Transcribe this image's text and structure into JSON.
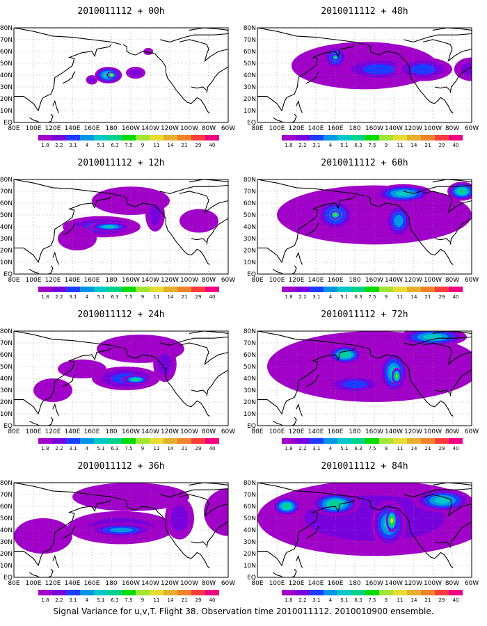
{
  "caption": "Signal Variance for u,v,T. Flight 38. Observation time 2010011112. 2010010900 ensemble.",
  "lat_labels": [
    "80N",
    "70N",
    "60N",
    "50N",
    "40N",
    "30N",
    "20N",
    "10N",
    "EQ"
  ],
  "lon_labels": [
    "80E",
    "100E",
    "120E",
    "140E",
    "160E",
    "180",
    "160W",
    "140W",
    "120W",
    "100W",
    "80W",
    "60W"
  ],
  "colorbar": {
    "labels": [
      "1.8",
      "2.2",
      "3.1",
      "4",
      "5.1",
      "6.3",
      "7.5",
      "9",
      "11",
      "14",
      "21",
      "29",
      "40"
    ],
    "colors": [
      "#a000c8",
      "#7800dc",
      "#1e3cff",
      "#0096e6",
      "#00c8c8",
      "#00d28c",
      "#00dc00",
      "#a0e632",
      "#e6dc32",
      "#e6af2d",
      "#f08228",
      "#fa3c3c",
      "#f00082"
    ]
  },
  "chart_data": [
    {
      "type": "heatmap",
      "title": "2010011112 + 00h",
      "blobs": [
        {
          "lon": 177,
          "lat": 40,
          "rx": 14,
          "ry": 7,
          "level": 5
        },
        {
          "lon": 160,
          "lat": 36,
          "rx": 6,
          "ry": 4,
          "level": 1
        },
        {
          "lon": 205,
          "lat": 42,
          "rx": 10,
          "ry": 5,
          "level": 1
        },
        {
          "lon": 180,
          "lat": 40,
          "rx": 5,
          "ry": 3,
          "level": 8
        },
        {
          "lon": 218,
          "lat": 60,
          "rx": 5,
          "ry": 3,
          "level": 0
        }
      ]
    },
    {
      "type": "heatmap",
      "title": "2010011112 + 12h",
      "blobs": [
        {
          "lon": 170,
          "lat": 40,
          "rx": 40,
          "ry": 9,
          "level": 2
        },
        {
          "lon": 178,
          "lat": 40,
          "rx": 22,
          "ry": 4,
          "level": 4
        },
        {
          "lon": 200,
          "lat": 62,
          "rx": 40,
          "ry": 12,
          "level": 0
        },
        {
          "lon": 225,
          "lat": 50,
          "rx": 10,
          "ry": 14,
          "level": 1
        },
        {
          "lon": 145,
          "lat": 30,
          "rx": 20,
          "ry": 10,
          "level": 0
        },
        {
          "lon": 270,
          "lat": 45,
          "rx": 20,
          "ry": 10,
          "level": 0
        }
      ]
    },
    {
      "type": "heatmap",
      "title": "2010011112 + 24h",
      "blobs": [
        {
          "lon": 195,
          "lat": 40,
          "rx": 35,
          "ry": 10,
          "level": 2
        },
        {
          "lon": 205,
          "lat": 39,
          "rx": 14,
          "ry": 4,
          "level": 5
        },
        {
          "lon": 210,
          "lat": 65,
          "rx": 45,
          "ry": 12,
          "level": 0
        },
        {
          "lon": 235,
          "lat": 52,
          "rx": 12,
          "ry": 15,
          "level": 1
        },
        {
          "lon": 150,
          "lat": 48,
          "rx": 25,
          "ry": 8,
          "level": 0
        },
        {
          "lon": 120,
          "lat": 30,
          "rx": 20,
          "ry": 10,
          "level": 0
        }
      ]
    },
    {
      "type": "heatmap",
      "title": "2010011112 + 36h",
      "blobs": [
        {
          "lon": 190,
          "lat": 42,
          "rx": 55,
          "ry": 14,
          "level": 1
        },
        {
          "lon": 190,
          "lat": 40,
          "rx": 35,
          "ry": 6,
          "level": 3
        },
        {
          "lon": 200,
          "lat": 68,
          "rx": 60,
          "ry": 12,
          "level": 0
        },
        {
          "lon": 250,
          "lat": 50,
          "rx": 15,
          "ry": 18,
          "level": 1
        },
        {
          "lon": 110,
          "lat": 35,
          "rx": 30,
          "ry": 15,
          "level": 0
        },
        {
          "lon": 300,
          "lat": 55,
          "rx": 25,
          "ry": 20,
          "level": 0
        }
      ]
    },
    {
      "type": "heatmap",
      "title": "2010011112 + 48h",
      "blobs": [
        {
          "lon": 190,
          "lat": 48,
          "rx": 75,
          "ry": 20,
          "level": 0
        },
        {
          "lon": 160,
          "lat": 55,
          "rx": 12,
          "ry": 10,
          "level": 3
        },
        {
          "lon": 205,
          "lat": 45,
          "rx": 40,
          "ry": 10,
          "level": 2
        },
        {
          "lon": 250,
          "lat": 45,
          "rx": 30,
          "ry": 10,
          "level": 2
        },
        {
          "lon": 160,
          "lat": 55,
          "rx": 4,
          "ry": 3,
          "level": 6
        },
        {
          "lon": 300,
          "lat": 45,
          "rx": 18,
          "ry": 10,
          "level": 1
        }
      ]
    },
    {
      "type": "heatmap",
      "title": "2010011112 + 60h",
      "blobs": [
        {
          "lon": 200,
          "lat": 50,
          "rx": 100,
          "ry": 25,
          "level": 0
        },
        {
          "lon": 160,
          "lat": 50,
          "rx": 20,
          "ry": 14,
          "level": 3
        },
        {
          "lon": 160,
          "lat": 50,
          "rx": 6,
          "ry": 4,
          "level": 7
        },
        {
          "lon": 225,
          "lat": 45,
          "rx": 14,
          "ry": 15,
          "level": 3
        },
        {
          "lon": 230,
          "lat": 68,
          "rx": 30,
          "ry": 8,
          "level": 4
        },
        {
          "lon": 290,
          "lat": 70,
          "rx": 15,
          "ry": 8,
          "level": 5
        }
      ]
    },
    {
      "type": "heatmap",
      "title": "2010011112 + 72h",
      "blobs": [
        {
          "lon": 200,
          "lat": 50,
          "rx": 110,
          "ry": 30,
          "level": 0
        },
        {
          "lon": 220,
          "lat": 45,
          "rx": 15,
          "ry": 18,
          "level": 4
        },
        {
          "lon": 223,
          "lat": 42,
          "rx": 5,
          "ry": 7,
          "level": 7
        },
        {
          "lon": 170,
          "lat": 60,
          "rx": 18,
          "ry": 8,
          "level": 5
        },
        {
          "lon": 260,
          "lat": 75,
          "rx": 35,
          "ry": 8,
          "level": 4
        },
        {
          "lon": 180,
          "lat": 35,
          "rx": 30,
          "ry": 8,
          "level": 2
        }
      ]
    },
    {
      "type": "heatmap",
      "title": "2010011112 + 84h",
      "blobs": [
        {
          "lon": 200,
          "lat": 50,
          "rx": 120,
          "ry": 32,
          "level": 1
        },
        {
          "lon": 215,
          "lat": 45,
          "rx": 18,
          "ry": 20,
          "level": 4
        },
        {
          "lon": 218,
          "lat": 48,
          "rx": 6,
          "ry": 10,
          "level": 8
        },
        {
          "lon": 160,
          "lat": 62,
          "rx": 25,
          "ry": 10,
          "level": 5
        },
        {
          "lon": 270,
          "lat": 65,
          "rx": 30,
          "ry": 10,
          "level": 4
        },
        {
          "lon": 110,
          "lat": 60,
          "rx": 15,
          "ry": 8,
          "level": 5
        }
      ]
    }
  ]
}
